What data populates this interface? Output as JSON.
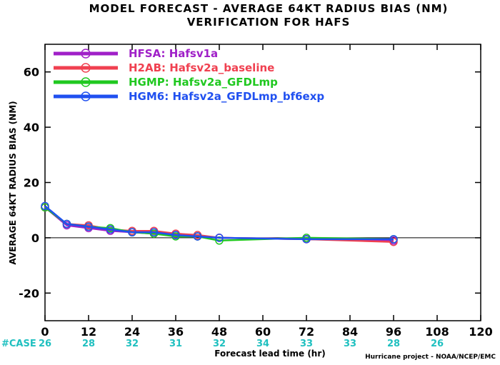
{
  "title_line1": "MODEL FORECAST - AVERAGE 64KT RADIUS BIAS (NM)",
  "title_line2": "VERIFICATION FOR HAFS",
  "credit": "Hurricane project - NOAA/NCEP/EMC",
  "chart_data": {
    "type": "line",
    "xlabel": "Forecast lead time (hr)",
    "ylabel": "AVERAGE 64KT RADIUS BIAS (NM)",
    "xlim": [
      0,
      120
    ],
    "ylim": [
      -30,
      70
    ],
    "x_ticks": [
      0,
      12,
      24,
      36,
      48,
      60,
      72,
      84,
      96,
      108,
      120
    ],
    "x_tick_labels": [
      "0",
      "12",
      "24",
      "36",
      "48",
      "60",
      "72",
      "84",
      "96",
      "108",
      "120"
    ],
    "y_ticks": [
      -20,
      0,
      20,
      40,
      60
    ],
    "y_tick_labels": [
      "-20",
      "0",
      "20",
      "40",
      "60"
    ],
    "zero_line": true,
    "grid": false,
    "legend_position": "top-left",
    "case_label": "#CASE",
    "case_counts": [
      {
        "x": 0,
        "label": "26"
      },
      {
        "x": 12,
        "label": "28"
      },
      {
        "x": 24,
        "label": "32"
      },
      {
        "x": 36,
        "label": "31"
      },
      {
        "x": 48,
        "label": "32"
      },
      {
        "x": 60,
        "label": "34"
      },
      {
        "x": 72,
        "label": "33"
      },
      {
        "x": 84,
        "label": "33"
      },
      {
        "x": 96,
        "label": "28"
      },
      {
        "x": 108,
        "label": "26"
      }
    ],
    "series": [
      {
        "name": "HFSA: Hafsv1a",
        "color": "#a020c8",
        "x": [
          0,
          6,
          12,
          18,
          24,
          30,
          36,
          42,
          48,
          72,
          96
        ],
        "y": [
          11,
          4.5,
          3.5,
          2.5,
          2,
          1.5,
          1,
          0.5,
          0,
          -0.5,
          -1
        ]
      },
      {
        "name": "H2AB: Hafsv2a_baseline",
        "color": "#f04050",
        "x": [
          0,
          6,
          12,
          18,
          24,
          30,
          36,
          42,
          48,
          72,
          96
        ],
        "y": [
          11,
          5,
          4.5,
          3,
          2.5,
          2.5,
          1.5,
          1,
          0,
          -0.5,
          -1.5
        ]
      },
      {
        "name": "HGMP: Hafsv2a_GFDLmp",
        "color": "#20c820",
        "x": [
          0,
          6,
          12,
          18,
          24,
          30,
          36,
          42,
          48,
          72,
          96
        ],
        "y": [
          11,
          5,
          4,
          3.5,
          2,
          1.5,
          0.5,
          0.5,
          -1,
          0,
          -0.5
        ]
      },
      {
        "name": "HGM6: Hafsv2a_GFDLmp_bf6exp",
        "color": "#2050f0",
        "x": [
          0,
          6,
          12,
          18,
          24,
          30,
          36,
          42,
          48,
          72,
          96
        ],
        "y": [
          11.5,
          5,
          4,
          3,
          2,
          2,
          1,
          0.5,
          0,
          -0.5,
          -0.5
        ]
      }
    ]
  }
}
